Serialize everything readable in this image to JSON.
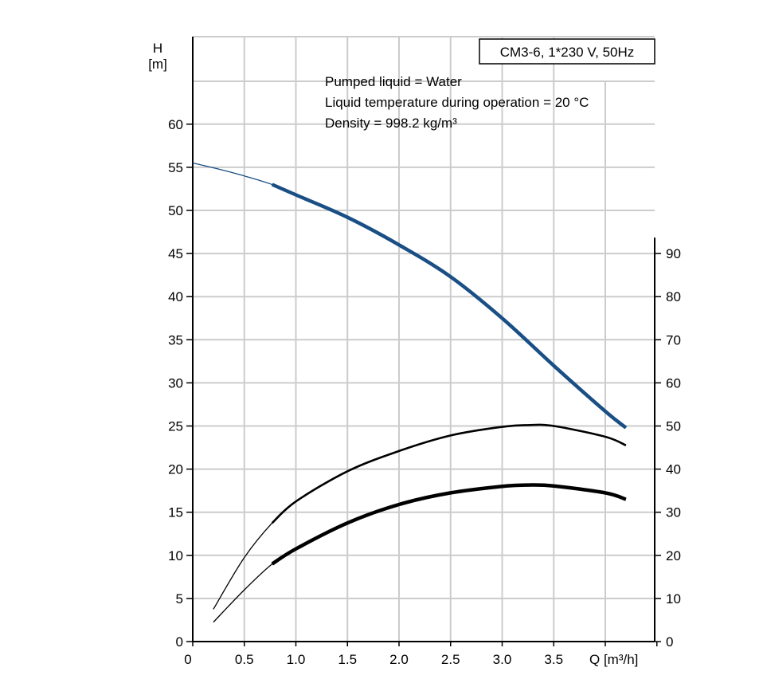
{
  "chart_data": {
    "type": "line",
    "title": "CM3-6, 1*230 V, 50Hz",
    "annotations": [
      "Pumped liquid = Water",
      "Liquid temperature during operation = 20 °C",
      "Density = 998.2 kg/m³"
    ],
    "ylabel": "H",
    "yunit": "[m]",
    "xlabel": "Q [m³/h]",
    "xlim": [
      0,
      4.5
    ],
    "ylim": [
      0,
      60
    ],
    "y2lim": [
      0,
      120
    ],
    "x_ticks": [
      "0",
      "0.5",
      "1.0",
      "1.5",
      "2.0",
      "2.5",
      "3.0",
      "3.5"
    ],
    "y_ticks": [
      "0",
      "5",
      "10",
      "15",
      "20",
      "25",
      "30",
      "35",
      "40",
      "45",
      "50",
      "55",
      "60"
    ],
    "y2_ticks": [
      "0",
      "10",
      "20",
      "30",
      "40",
      "50",
      "60",
      "70",
      "80",
      "90"
    ],
    "grid": true,
    "legend": "none",
    "colors": {
      "head": "#1a4f85",
      "curves": "#000000",
      "grid": "#cccccc"
    },
    "series": [
      {
        "axis": "left",
        "x": [
          0,
          0.25,
          0.5,
          0.77,
          1.0,
          1.5,
          2.0,
          2.5,
          3.0,
          3.5,
          4.0,
          4.2
        ],
        "values": [
          55.5,
          54.8,
          54.0,
          53.0,
          51.8,
          49.2,
          46.0,
          42.3,
          37.5,
          32.0,
          26.7,
          24.8
        ],
        "highlight_from": 0.77
      },
      {
        "axis": "right",
        "x": [
          0.2,
          0.5,
          0.77,
          1.0,
          1.5,
          2.0,
          2.5,
          3.0,
          3.25,
          3.5,
          4.0,
          4.2
        ],
        "values": [
          7.5,
          19.5,
          27.5,
          32.5,
          39.5,
          44.2,
          47.8,
          49.8,
          50.2,
          50.0,
          47.5,
          45.5
        ],
        "highlight_from": 0.77
      },
      {
        "axis": "right",
        "x": [
          0.2,
          0.5,
          0.77,
          1.0,
          1.5,
          2.0,
          2.5,
          3.0,
          3.25,
          3.5,
          4.0,
          4.2
        ],
        "values": [
          4.5,
          12.0,
          18.0,
          21.5,
          27.5,
          31.8,
          34.5,
          36.0,
          36.3,
          36.1,
          34.5,
          33.0
        ],
        "highlight_from": 0.77
      }
    ]
  }
}
